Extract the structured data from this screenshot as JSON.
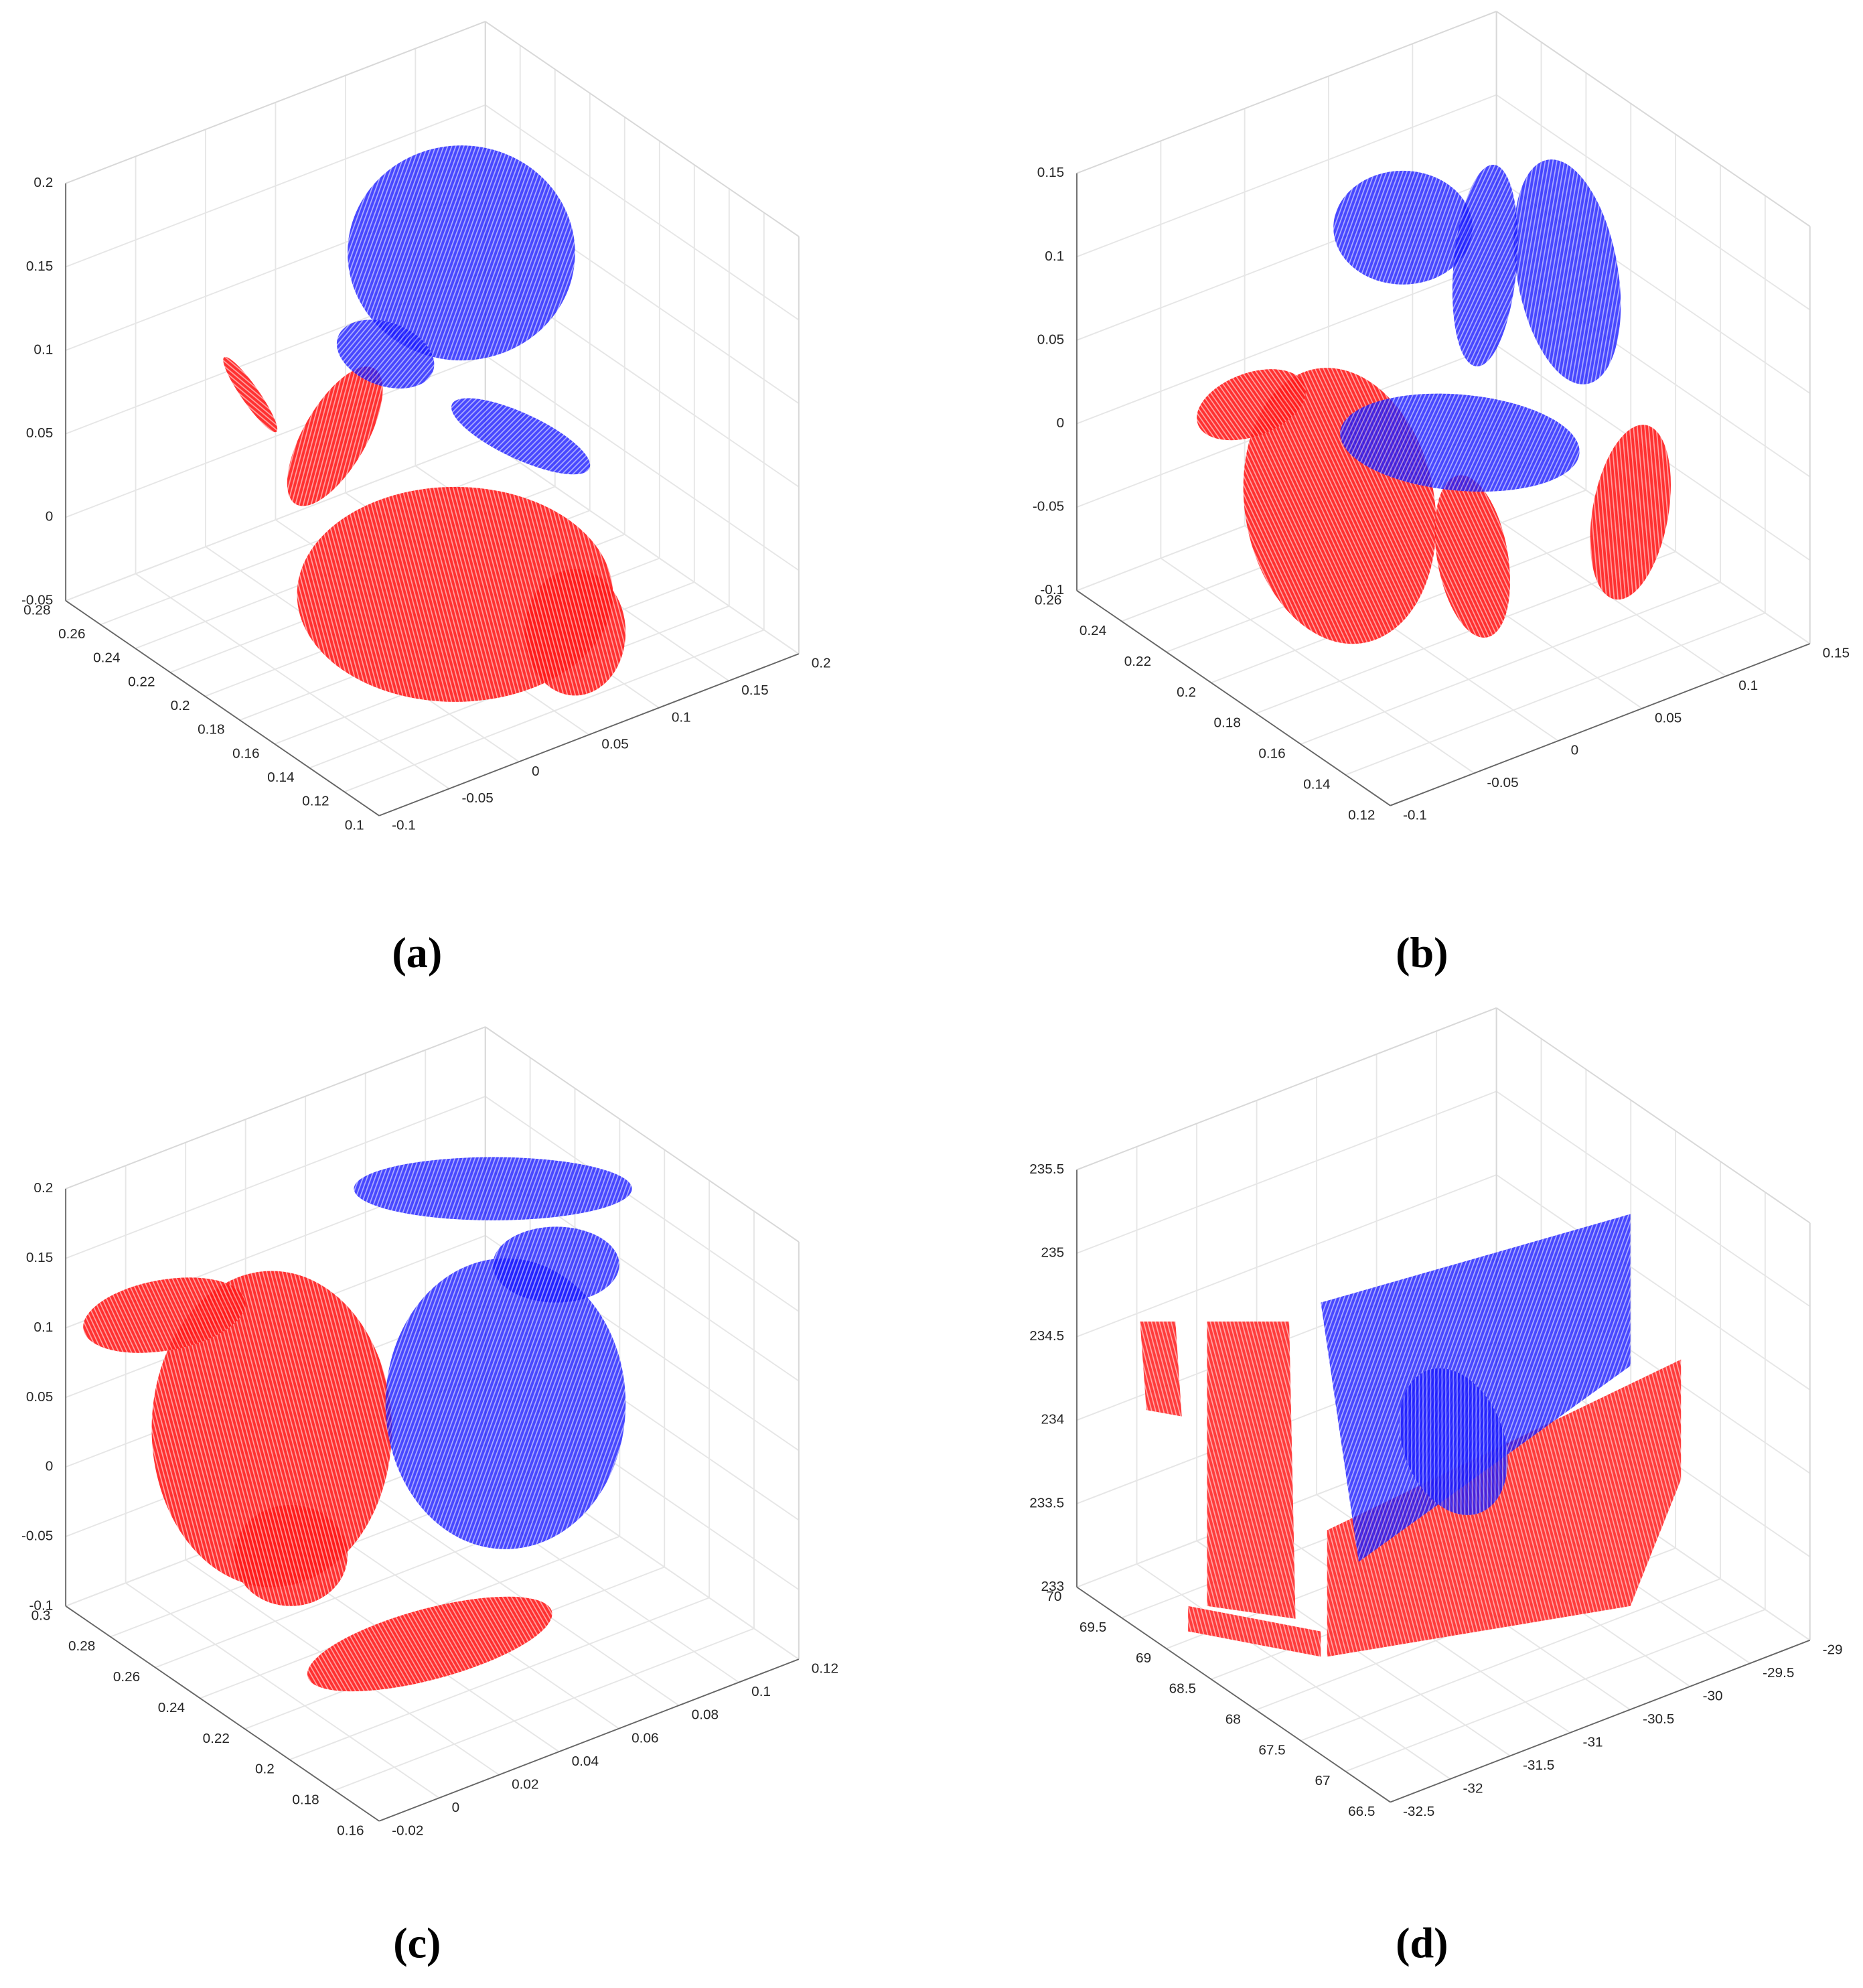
{
  "chart_data": [
    {
      "type": "scatter3d",
      "caption": "(a)",
      "colors": [
        "#ff1a1a",
        "#1a1aff"
      ],
      "xlim": [
        -0.1,
        0.2
      ],
      "xticks": [
        -0.1,
        -0.05,
        0,
        0.05,
        0.1,
        0.15,
        0.2
      ],
      "ylim": [
        0.1,
        0.28
      ],
      "yticks": [
        0.1,
        0.12,
        0.14,
        0.16,
        0.18,
        0.2,
        0.22,
        0.24,
        0.26,
        0.28
      ],
      "zlim": [
        -0.05,
        0.2
      ],
      "zticks": [
        -0.05,
        0,
        0.05,
        0.1,
        0.15,
        0.2
      ],
      "grid": true
    },
    {
      "type": "scatter3d",
      "caption": "(b)",
      "colors": [
        "#ff1a1a",
        "#1a1aff"
      ],
      "xlim": [
        -0.1,
        0.15
      ],
      "xticks": [
        -0.1,
        -0.05,
        0,
        0.05,
        0.1,
        0.15
      ],
      "ylim": [
        0.12,
        0.26
      ],
      "yticks": [
        0.12,
        0.14,
        0.16,
        0.18,
        0.2,
        0.22,
        0.24,
        0.26
      ],
      "zlim": [
        -0.1,
        0.15
      ],
      "zticks": [
        -0.1,
        -0.05,
        0,
        0.05,
        0.1,
        0.15
      ],
      "grid": true
    },
    {
      "type": "scatter3d",
      "caption": "(c)",
      "colors": [
        "#ff1a1a",
        "#1a1aff"
      ],
      "xlim": [
        -0.02,
        0.12
      ],
      "xticks": [
        -0.02,
        0,
        0.02,
        0.04,
        0.06,
        0.08,
        0.1,
        0.12
      ],
      "ylim": [
        0.16,
        0.3
      ],
      "yticks": [
        0.16,
        0.18,
        0.2,
        0.22,
        0.24,
        0.26,
        0.28,
        0.3
      ],
      "zlim": [
        -0.1,
        0.2
      ],
      "zticks": [
        -0.1,
        -0.05,
        0,
        0.05,
        0.1,
        0.15,
        0.2
      ],
      "grid": true
    },
    {
      "type": "scatter3d",
      "caption": "(d)",
      "colors": [
        "#ff1a1a",
        "#1a1aff"
      ],
      "xlim": [
        -32.5,
        -29
      ],
      "xticks": [
        -32.5,
        -32,
        -31.5,
        -31,
        -30.5,
        -30,
        -29.5,
        -29
      ],
      "ylim": [
        66.5,
        70
      ],
      "yticks": [
        66.5,
        67,
        67.5,
        68,
        68.5,
        69,
        69.5,
        70
      ],
      "zlim": [
        233,
        235.5
      ],
      "zticks": [
        233,
        233.5,
        234,
        234.5,
        235,
        235.5
      ],
      "grid": true
    }
  ]
}
